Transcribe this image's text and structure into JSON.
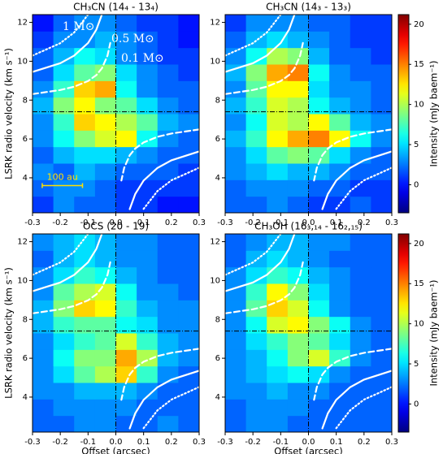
{
  "chart_data": [
    {
      "type": "heatmap",
      "title": "CH₃CN (14₄ - 13₄)",
      "ylabel": "LSRK radio velocity (km s⁻¹)",
      "xlim": [
        -0.3,
        0.3
      ],
      "ylim": [
        2.2,
        12.4
      ],
      "xticks": [
        -0.3,
        -0.2,
        -0.1,
        {
          "value": 0,
          "label": "0.0"
        },
        0.1,
        0.2,
        0.3
      ],
      "yticks": [
        4,
        6,
        8,
        10,
        12
      ],
      "xbins": [
        -0.3,
        -0.225,
        -0.15,
        -0.075,
        0,
        0.075,
        0.15,
        0.225,
        0.3
      ],
      "ybins": [
        2.2,
        3.05,
        3.9,
        4.75,
        5.6,
        6.45,
        7.3,
        8.15,
        9.0,
        9.85,
        10.7,
        11.55,
        12.4
      ],
      "z": [
        [
          1,
          3,
          2,
          2,
          1,
          1,
          0,
          0
        ],
        [
          2,
          3,
          3,
          2,
          1,
          1,
          1,
          1
        ],
        [
          3,
          2,
          4,
          3,
          2,
          2,
          2,
          1
        ],
        [
          2,
          4,
          5,
          5,
          4,
          3,
          2,
          2
        ],
        [
          3,
          6,
          9,
          11,
          12,
          6,
          3,
          2
        ],
        [
          3,
          7,
          13,
          12,
          10,
          8,
          4,
          3
        ],
        [
          4,
          9,
          12,
          9,
          8,
          5,
          3,
          2
        ],
        [
          3,
          7,
          13,
          14,
          6,
          3,
          2,
          2
        ],
        [
          2,
          5,
          8,
          9,
          5,
          3,
          2,
          1
        ],
        [
          2,
          4,
          6,
          5,
          3,
          2,
          1,
          1
        ],
        [
          1,
          3,
          3,
          4,
          3,
          2,
          1,
          0
        ],
        [
          0,
          2,
          3,
          3,
          2,
          1,
          1,
          0
        ]
      ],
      "annotations": [
        "1 M⊙",
        "0.5 M⊙",
        "0.1 M⊙"
      ],
      "scalebar": {
        "label": "100 au",
        "x": [
          -0.265,
          -0.12
        ],
        "y": 3.6
      }
    },
    {
      "type": "heatmap",
      "title": "CH₃CN (14₃ - 13₃)",
      "xlim": [
        -0.3,
        0.3
      ],
      "ylim": [
        2.2,
        12.4
      ],
      "xticks": [
        -0.3,
        -0.2,
        -0.1,
        {
          "value": 0,
          "label": "0.0"
        },
        0.1,
        0.2,
        0.3
      ],
      "yticks": [
        4,
        6,
        8,
        10,
        12
      ],
      "xbins": [
        -0.3,
        -0.225,
        -0.15,
        -0.075,
        0,
        0.075,
        0.15,
        0.225,
        0.3
      ],
      "ybins": [
        2.2,
        3.05,
        3.9,
        4.75,
        5.6,
        6.45,
        7.3,
        8.15,
        9.0,
        9.85,
        10.7,
        11.55,
        12.4
      ],
      "z": [
        [
          2,
          2,
          3,
          2,
          1,
          1,
          2,
          1
        ],
        [
          2,
          3,
          3,
          3,
          2,
          2,
          1,
          1
        ],
        [
          3,
          4,
          5,
          4,
          4,
          3,
          2,
          2
        ],
        [
          3,
          5,
          8,
          9,
          8,
          5,
          3,
          2
        ],
        [
          4,
          7,
          12,
          14,
          15,
          12,
          6,
          3
        ],
        [
          3,
          6,
          11,
          10,
          12,
          8,
          4,
          3
        ],
        [
          4,
          7,
          11,
          10,
          6,
          4,
          3,
          2
        ],
        [
          3,
          8,
          12,
          12,
          5,
          3,
          3,
          2
        ],
        [
          4,
          9,
          14,
          15,
          6,
          3,
          2,
          2
        ],
        [
          3,
          6,
          10,
          9,
          4,
          2,
          2,
          1
        ],
        [
          2,
          4,
          5,
          4,
          3,
          2,
          1,
          1
        ],
        [
          1,
          3,
          3,
          3,
          2,
          2,
          1,
          1
        ]
      ],
      "colorbar": {
        "label": "Intensity (mJy baem⁻¹)",
        "lim": [
          -3.5,
          21.2
        ],
        "ticks": [
          0,
          5,
          10,
          15,
          20
        ],
        "colormap": "jet"
      }
    },
    {
      "type": "heatmap",
      "title": "OCS (20 - 19)",
      "ylabel": "LSRK radio velocity (km s⁻¹)",
      "xlabel": "Offset (arcsec)",
      "xlim": [
        -0.3,
        0.3
      ],
      "ylim": [
        2.2,
        12.4
      ],
      "xticks": [
        -0.3,
        -0.2,
        -0.1,
        {
          "value": 0,
          "label": "0.0"
        },
        0.1,
        0.2,
        0.3
      ],
      "yticks": [
        4,
        6,
        8,
        10,
        12
      ],
      "xbins": [
        -0.3,
        -0.225,
        -0.15,
        -0.075,
        0,
        0.075,
        0.15,
        0.225,
        0.3
      ],
      "ybins": [
        2.2,
        3.05,
        3.9,
        4.75,
        5.6,
        6.45,
        7.3,
        8.15,
        9.0,
        9.85,
        10.7,
        11.55,
        12.4
      ],
      "z": [
        [
          2,
          2,
          3,
          3,
          2,
          2,
          3,
          2
        ],
        [
          2,
          3,
          3,
          3,
          3,
          2,
          2,
          2
        ],
        [
          3,
          3,
          4,
          4,
          4,
          3,
          2,
          2
        ],
        [
          3,
          5,
          8,
          10,
          13,
          7,
          3,
          2
        ],
        [
          3,
          6,
          9,
          9,
          14,
          10,
          4,
          3
        ],
        [
          3,
          5,
          7,
          8,
          11,
          7,
          4,
          3
        ],
        [
          4,
          7,
          8,
          8,
          6,
          5,
          3,
          3
        ],
        [
          4,
          9,
          13,
          12,
          7,
          4,
          3,
          3
        ],
        [
          3,
          8,
          10,
          11,
          6,
          3,
          3,
          2
        ],
        [
          3,
          5,
          7,
          6,
          4,
          3,
          2,
          2
        ],
        [
          2,
          4,
          5,
          4,
          3,
          3,
          2,
          2
        ],
        [
          3,
          4,
          5,
          4,
          3,
          3,
          2,
          2
        ]
      ]
    },
    {
      "type": "heatmap",
      "title": "CH₃OH (16₃,₁₄ - 16₂,₁₅)",
      "xlabel": "Offset (arcsec)",
      "xlim": [
        -0.3,
        0.3
      ],
      "ylim": [
        2.2,
        12.4
      ],
      "xticks": [
        -0.3,
        -0.2,
        -0.1,
        {
          "value": 0,
          "label": "0.0"
        },
        0.1,
        0.2,
        0.3
      ],
      "yticks": [
        4,
        6,
        8,
        10,
        12
      ],
      "xbins": [
        -0.3,
        -0.225,
        -0.15,
        -0.075,
        0,
        0.075,
        0.15,
        0.225,
        0.3
      ],
      "ybins": [
        2.2,
        3.05,
        3.9,
        4.75,
        5.6,
        6.45,
        7.3,
        8.15,
        9.0,
        9.85,
        10.7,
        11.55,
        12.4
      ],
      "z": [
        [
          2,
          3,
          3,
          2,
          2,
          2,
          2,
          2
        ],
        [
          2,
          3,
          3,
          3,
          2,
          2,
          2,
          2
        ],
        [
          3,
          3,
          4,
          3,
          3,
          2,
          2,
          2
        ],
        [
          3,
          4,
          5,
          6,
          5,
          3,
          2,
          2
        ],
        [
          3,
          4,
          6,
          9,
          11,
          7,
          3,
          2
        ],
        [
          3,
          5,
          7,
          9,
          8,
          5,
          3,
          2
        ],
        [
          3,
          6,
          11,
          12,
          9,
          6,
          3,
          2
        ],
        [
          3,
          8,
          13,
          11,
          6,
          3,
          2,
          2
        ],
        [
          3,
          7,
          12,
          9,
          5,
          3,
          2,
          2
        ],
        [
          3,
          5,
          7,
          6,
          4,
          3,
          2,
          2
        ],
        [
          2,
          4,
          5,
          4,
          3,
          2,
          2,
          2
        ],
        [
          2,
          3,
          4,
          4,
          3,
          3,
          2,
          2
        ]
      ],
      "colorbar": {
        "label": "Intensity (mJy baem⁻¹)",
        "lim": [
          -3.5,
          21.2
        ],
        "ticks": [
          0,
          5,
          10,
          15,
          20
        ],
        "colormap": "jet"
      }
    }
  ],
  "model_curves": {
    "vsys": 7.4,
    "center": 0,
    "curves": [
      {
        "style": "dotted",
        "upper": {
          "x": [
            -0.3,
            -0.2,
            -0.15,
            -0.1
          ],
          "y": [
            10.29,
            10.93,
            11.48,
            12.4
          ]
        },
        "lower": {
          "x": [
            0.3,
            0.2,
            0.15,
            0.1
          ],
          "y": [
            4.52,
            3.87,
            3.32,
            2.4
          ]
        }
      },
      {
        "style": "solid",
        "upper": {
          "x": [
            -0.3,
            -0.2,
            -0.15,
            -0.1,
            -0.07,
            -0.05
          ],
          "y": [
            9.45,
            9.9,
            10.29,
            10.94,
            11.63,
            12.41
          ]
        },
        "lower": {
          "x": [
            0.3,
            0.2,
            0.15,
            0.1,
            0.07,
            0.05
          ],
          "y": [
            5.36,
            4.9,
            4.51,
            3.86,
            3.17,
            2.39
          ]
        }
      },
      {
        "style": "dashed",
        "upper": {
          "x": [
            -0.3,
            -0.2,
            -0.15,
            -0.1,
            -0.07,
            -0.05,
            -0.03,
            -0.02
          ],
          "y": [
            8.31,
            8.52,
            8.69,
            8.98,
            9.29,
            9.64,
            10.29,
            10.94
          ]
        },
        "lower": {
          "x": [
            0.3,
            0.2,
            0.15,
            0.1,
            0.07,
            0.05,
            0.03,
            0.02
          ],
          "y": [
            6.49,
            6.28,
            6.11,
            5.82,
            5.51,
            5.16,
            4.51,
            3.86
          ]
        }
      }
    ]
  }
}
